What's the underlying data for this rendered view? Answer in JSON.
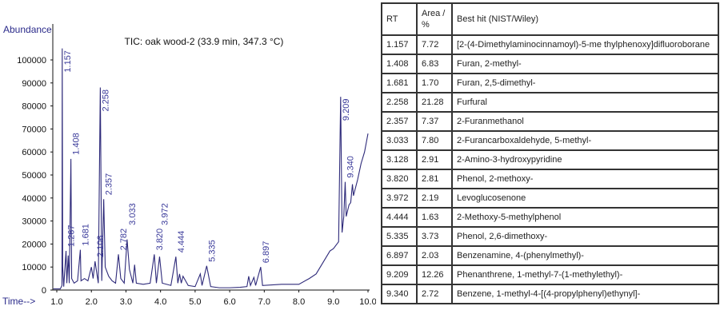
{
  "chart_data": {
    "type": "line",
    "title": "TIC: oak wood-2 (33.9 min, 347.3 °C)",
    "ylabel": "Abundance",
    "xlabel": "Time-->",
    "xlim": [
      0.88,
      10.05
    ],
    "ylim": [
      0,
      110000
    ],
    "x_ticks": [
      "1.0",
      "2.0",
      "3.0",
      "4.0",
      "5.0",
      "6.0",
      "7.0",
      "8.0",
      "9.0",
      "10.0"
    ],
    "y_ticks": [
      "0",
      "10000",
      "20000",
      "30000",
      "40000",
      "50000",
      "60000",
      "70000",
      "80000",
      "90000",
      "100000"
    ],
    "color": "#2e2a7a",
    "series": [
      {
        "x": [
          0.9,
          1.1,
          1.15,
          1.157,
          1.17,
          1.2,
          1.267,
          1.29,
          1.33,
          1.36,
          1.408,
          1.43,
          1.5,
          1.6,
          1.681,
          1.7,
          1.8,
          1.9,
          2.0,
          2.05,
          2.106,
          2.15,
          2.2,
          2.258,
          2.3,
          2.357,
          2.4,
          2.5,
          2.6,
          2.7,
          2.782,
          2.85,
          2.95,
          3.033,
          3.1,
          3.2,
          3.25,
          3.3,
          3.5,
          3.7,
          3.82,
          3.88,
          3.972,
          4.05,
          4.3,
          4.444,
          4.5,
          4.55,
          4.6,
          4.65,
          4.8,
          5.0,
          5.15,
          5.2,
          5.335,
          5.45,
          5.7,
          6.0,
          6.3,
          6.5,
          6.55,
          6.6,
          6.7,
          6.75,
          6.897,
          6.95,
          7.5,
          8.0,
          8.3,
          8.5,
          8.7,
          8.9,
          9.0,
          9.1,
          9.15,
          9.209,
          9.25,
          9.3,
          9.34,
          9.37,
          9.45,
          9.5,
          9.55,
          9.58,
          9.7,
          9.8,
          9.9,
          9.95,
          10.0
        ],
        "y": [
          500,
          500,
          2000,
          105000,
          10000,
          1500,
          17000,
          3000,
          15000,
          3000,
          57000,
          5000,
          3000,
          4000,
          17500,
          4000,
          5000,
          4000,
          10000,
          5000,
          12500,
          8000,
          3000,
          88000,
          4000,
          39500,
          10000,
          6000,
          4000,
          3000,
          15500,
          5000,
          3000,
          22000,
          9000,
          3000,
          11000,
          3000,
          2500,
          3000,
          15500,
          3000,
          14500,
          3000,
          2000,
          14500,
          3000,
          7000,
          3000,
          6000,
          2000,
          1500,
          7000,
          2000,
          10500,
          1500,
          1000,
          1000,
          1200,
          1500,
          6000,
          2000,
          5500,
          2000,
          10000,
          2000,
          2500,
          2500,
          5000,
          7000,
          12000,
          17000,
          18000,
          20000,
          21000,
          84000,
          25000,
          32000,
          47000,
          32000,
          37000,
          38000,
          46000,
          41000,
          48000,
          55000,
          60000,
          64000,
          68000
        ]
      }
    ],
    "peak_labels": [
      {
        "label": "1.157",
        "x": 1.157,
        "y": 105000
      },
      {
        "label": "1.267",
        "x": 1.267,
        "y": 17000
      },
      {
        "label": "1.408",
        "x": 1.408,
        "y": 57000
      },
      {
        "label": "1.681",
        "x": 1.681,
        "y": 17500
      },
      {
        "label": "2.106",
        "x": 2.106,
        "y": 12500
      },
      {
        "label": "2.258",
        "x": 2.258,
        "y": 88000
      },
      {
        "label": "2.357",
        "x": 2.357,
        "y": 39500
      },
      {
        "label": "2.782",
        "x": 2.782,
        "y": 15500
      },
      {
        "label": "3.033",
        "x": 3.033,
        "y": 22000
      },
      {
        "label": "3.820",
        "x": 3.82,
        "y": 15500
      },
      {
        "label": "3.972",
        "x": 3.972,
        "y": 14500
      },
      {
        "label": "4.444",
        "x": 4.444,
        "y": 14500
      },
      {
        "label": "5.335",
        "x": 5.335,
        "y": 10500
      },
      {
        "label": "6.897",
        "x": 6.897,
        "y": 10000
      },
      {
        "label": "9.209",
        "x": 9.209,
        "y": 84000
      },
      {
        "label": "9.340",
        "x": 9.34,
        "y": 47000
      }
    ]
  },
  "table": {
    "headers": [
      "RT",
      "Area / %",
      "Best hit (NIST/Wiley)"
    ],
    "rows": [
      [
        "1.157",
        "7.72",
        "[2-(4-Dimethylaminocinnamoyl)-5-me thylphenoxy]difluoroborane"
      ],
      [
        "1.408",
        "6.83",
        "Furan, 2-methyl-"
      ],
      [
        "1.681",
        "1.70",
        "Furan, 2,5-dimethyl-"
      ],
      [
        "2.258",
        "21.28",
        "Furfural"
      ],
      [
        "2.357",
        "7.37",
        "2-Furanmethanol"
      ],
      [
        "3.033",
        "7.80",
        "2-Furancarboxaldehyde, 5-methyl-"
      ],
      [
        "3.128",
        "2.91",
        "2-Amino-3-hydroxypyridine"
      ],
      [
        "3.820",
        "2.81",
        "Phenol, 2-methoxy-"
      ],
      [
        "3.972",
        "2.19",
        "Levoglucosenone"
      ],
      [
        "4.444",
        "1.63",
        "2-Methoxy-5-methylphenol"
      ],
      [
        "5.335",
        "3.73",
        "Phenol, 2,6-dimethoxy-"
      ],
      [
        "6.897",
        "2.03",
        "Benzenamine, 4-(phenylmethyl)-"
      ],
      [
        "9.209",
        "12.26",
        "Phenanthrene, 1-methyl-7-(1-methylethyl)-"
      ],
      [
        "9.340",
        "2.72",
        "Benzene, 1-methyl-4-[(4-propylphenyl)ethynyl]-"
      ]
    ]
  }
}
